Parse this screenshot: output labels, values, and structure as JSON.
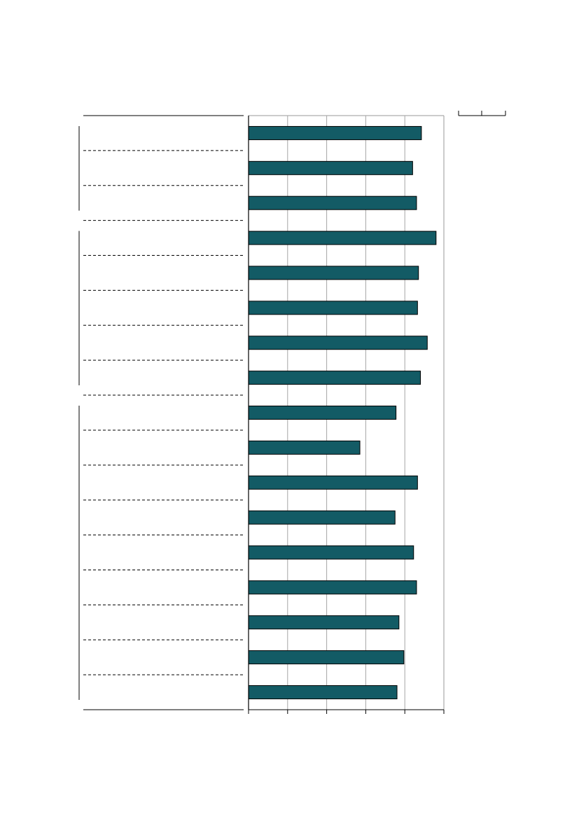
{
  "chart_data": {
    "type": "bar",
    "orientation": "horizontal",
    "categories": [
      "",
      "",
      "",
      "",
      "",
      "",
      "",
      "",
      "",
      "",
      "",
      "",
      "",
      "",
      "",
      "",
      ""
    ],
    "groups": [
      {
        "start": 0,
        "count": 3
      },
      {
        "start": 3,
        "count": 5
      },
      {
        "start": 8,
        "count": 9
      }
    ],
    "values": [
      88.5,
      84,
      86,
      96,
      87,
      86.5,
      91.5,
      88,
      75.5,
      57,
      86.5,
      75,
      84.5,
      86,
      77,
      79.5,
      76
    ],
    "xlim": [
      0,
      100
    ],
    "xticks": [
      0,
      20,
      40,
      60,
      80,
      100
    ],
    "grid": true,
    "bar_color": "#135b65",
    "title": "",
    "xlabel": "",
    "ylabel": ""
  }
}
